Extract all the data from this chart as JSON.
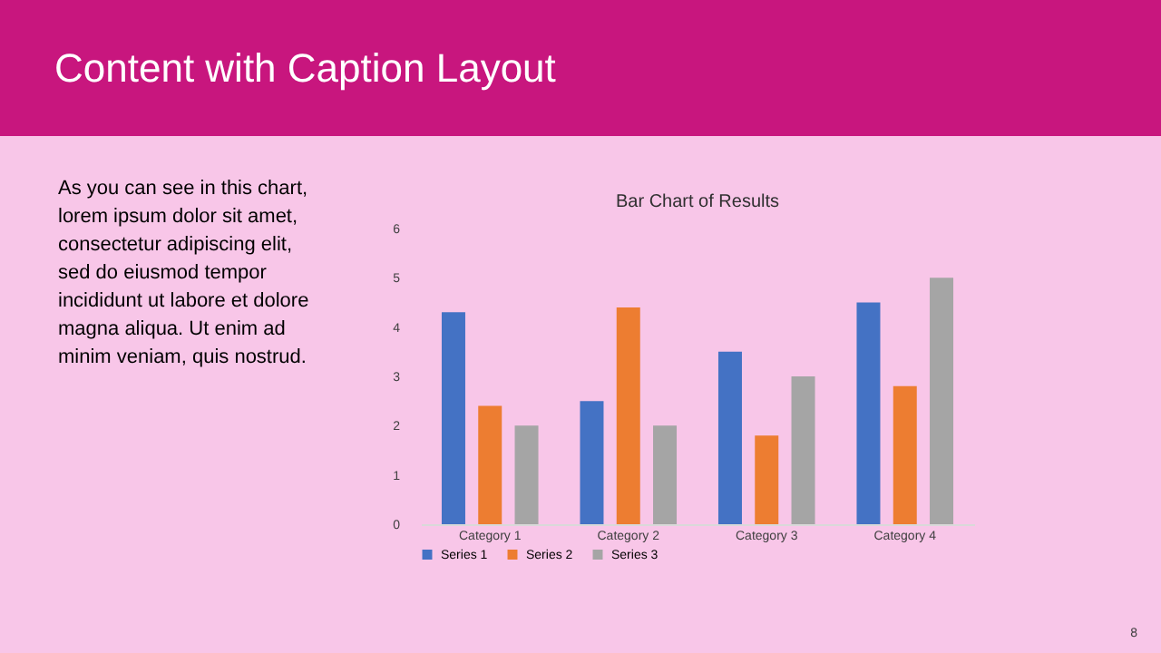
{
  "chart_data": {
    "type": "bar",
    "title": "Bar Chart of Results",
    "categories": [
      "Category 1",
      "Category 2",
      "Category 3",
      "Category 4"
    ],
    "series": [
      {
        "name": "Series 1",
        "color": "#4472c4",
        "values": [
          4.3,
          2.5,
          3.5,
          4.5
        ]
      },
      {
        "name": "Series 2",
        "color": "#ed7d31",
        "values": [
          2.4,
          4.4,
          1.8,
          2.8
        ]
      },
      {
        "name": "Series 3",
        "color": "#a5a5a5",
        "values": [
          2,
          2,
          3,
          5
        ]
      }
    ],
    "ylim": [
      0,
      6
    ],
    "yticks": [
      0,
      1,
      2,
      3,
      4,
      5,
      6
    ],
    "grid": false,
    "legend": "bottom",
    "annotations": [
      "Content with Caption Layout",
      "As you can see in this chart,\nlorem ipsum dolor sit amet,\nconsectetur adipiscing elit,\nsed do eiusmod tempor\nincididunt ut labore et dolore\nmagna aliqua. Ut enim ad\nminim veniam, quis nostrud.",
      "8"
    ]
  }
}
